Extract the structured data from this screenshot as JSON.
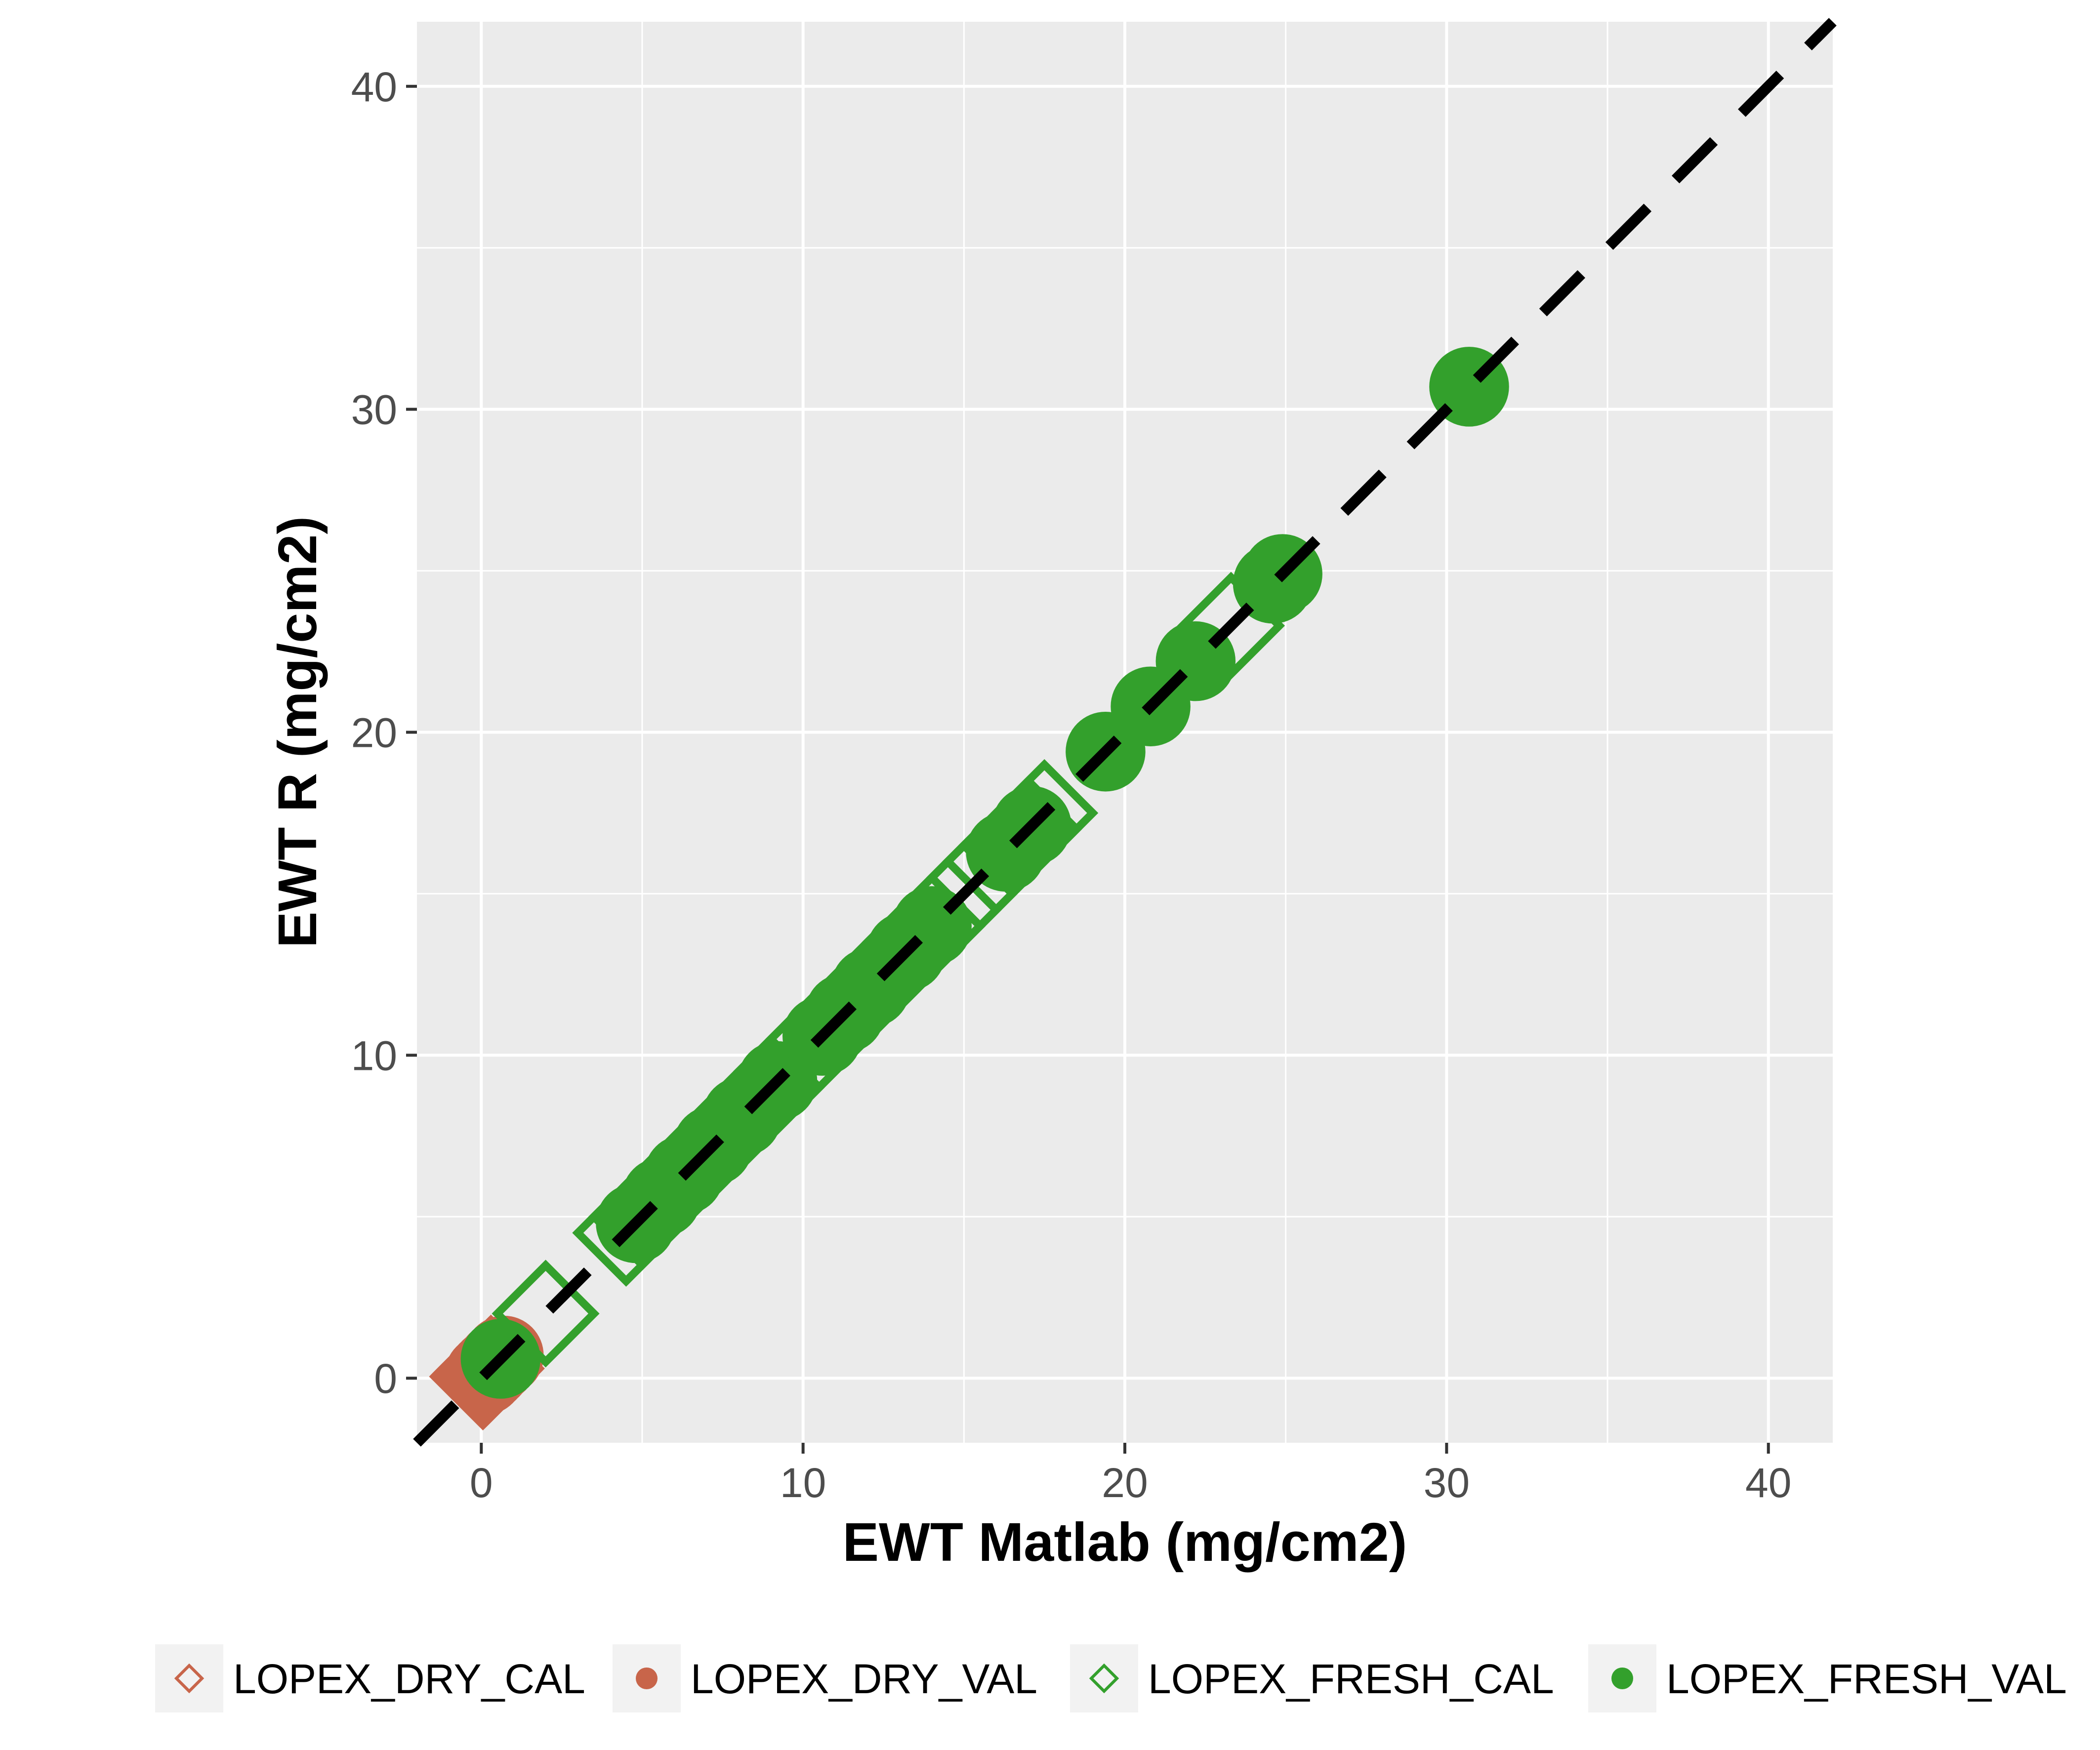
{
  "chart_data": {
    "type": "scatter",
    "title": "",
    "xlabel": "EWT Matlab (mg/cm2)",
    "ylabel": "EWT R (mg/cm2)",
    "xlim": [
      -2,
      42
    ],
    "ylim": [
      -2,
      42
    ],
    "x_ticks": [
      "0",
      "10",
      "20",
      "30",
      "40"
    ],
    "y_ticks": [
      "0",
      "10",
      "20",
      "30",
      "40"
    ],
    "grid": true,
    "legend_position": "bottom",
    "reference_line": {
      "type": "identity",
      "style": "dashed",
      "color": "#000000"
    },
    "series": [
      {
        "name": "LOPEX_DRY_CAL",
        "color": "#c8654a",
        "marker": "open-diamond",
        "points": [
          [
            0.05,
            0.05
          ],
          [
            0.1,
            0.1
          ],
          [
            0.15,
            0.15
          ],
          [
            0.2,
            0.2
          ],
          [
            0.25,
            0.25
          ],
          [
            0.3,
            0.3
          ]
        ]
      },
      {
        "name": "LOPEX_DRY_VAL",
        "color": "#c8654a",
        "marker": "filled-circle",
        "points": [
          [
            0.1,
            0.1
          ],
          [
            0.2,
            0.2
          ],
          [
            0.3,
            0.3
          ],
          [
            0.5,
            0.5
          ],
          [
            0.7,
            0.7
          ]
        ]
      },
      {
        "name": "LOPEX_FRESH_CAL",
        "color": "#33a02c",
        "marker": "open-diamond",
        "points": [
          [
            2.0,
            2.0
          ],
          [
            4.5,
            4.5
          ],
          [
            5.0,
            5.0
          ],
          [
            5.5,
            5.5
          ],
          [
            6.0,
            6.0
          ],
          [
            6.5,
            6.5
          ],
          [
            7.0,
            7.0
          ],
          [
            7.5,
            7.5
          ],
          [
            8.0,
            8.0
          ],
          [
            8.5,
            8.5
          ],
          [
            9.0,
            9.0
          ],
          [
            9.5,
            9.5
          ],
          [
            10.0,
            10.0
          ],
          [
            10.5,
            10.5
          ],
          [
            11.0,
            11.0
          ],
          [
            11.5,
            11.5
          ],
          [
            12.0,
            12.0
          ],
          [
            12.5,
            12.5
          ],
          [
            13.0,
            13.0
          ],
          [
            13.5,
            13.5
          ],
          [
            14.0,
            14.0
          ],
          [
            14.5,
            14.5
          ],
          [
            15.0,
            15.0
          ],
          [
            15.5,
            15.5
          ],
          [
            16.0,
            16.0
          ],
          [
            16.5,
            16.5
          ],
          [
            17.0,
            17.0
          ],
          [
            17.5,
            17.5
          ],
          [
            23.3,
            23.3
          ]
        ]
      },
      {
        "name": "LOPEX_FRESH_VAL",
        "color": "#33a02c",
        "marker": "filled-circle",
        "points": [
          [
            0.6,
            0.6
          ],
          [
            4.8,
            4.8
          ],
          [
            5.6,
            5.6
          ],
          [
            6.3,
            6.3
          ],
          [
            7.2,
            7.2
          ],
          [
            8.1,
            8.1
          ],
          [
            9.2,
            9.2
          ],
          [
            10.6,
            10.6
          ],
          [
            11.3,
            11.3
          ],
          [
            12.1,
            12.1
          ],
          [
            13.2,
            13.2
          ],
          [
            14.0,
            14.0
          ],
          [
            16.3,
            16.3
          ],
          [
            17.1,
            17.1
          ],
          [
            19.4,
            19.4
          ],
          [
            20.8,
            20.8
          ],
          [
            22.2,
            22.2
          ],
          [
            24.6,
            24.6
          ],
          [
            24.9,
            24.9
          ],
          [
            30.7,
            30.7
          ]
        ]
      }
    ]
  }
}
